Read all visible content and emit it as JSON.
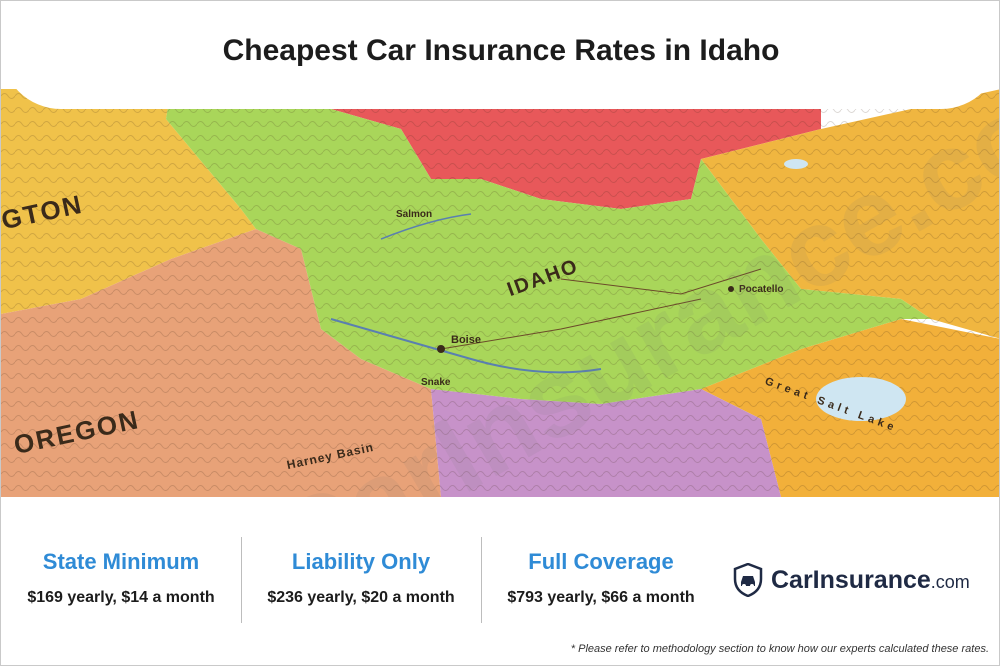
{
  "title": "Cheapest Car Insurance Rates in Idaho",
  "map": {
    "labels": {
      "idaho": "IDAHO",
      "oregon": "OREGON",
      "washington": "GTON",
      "harney_basin": "Harney Basin",
      "great_salt_lake": "Great Salt Lake",
      "boise": "Boise",
      "salmon": "Salmon",
      "snake": "Snake",
      "pocatello": "Pocatello"
    },
    "colors": {
      "idaho": "#a9d65a",
      "oregon": "#e8a278",
      "washington": "#f0c24a",
      "montana": "#e8585a",
      "wyoming": "#f0b640",
      "utah": "#f2b03a",
      "nevada": "#c792c9"
    }
  },
  "stats": [
    {
      "label": "State Minimum",
      "value": "$169 yearly, $14 a month"
    },
    {
      "label": "Liability Only",
      "value": "$236 yearly, $20 a month"
    },
    {
      "label": "Full Coverage",
      "value": "$793 yearly, $66 a month"
    }
  ],
  "logo": {
    "name": "CarInsurance",
    "suffix": ".com",
    "icon": "shield-car-icon"
  },
  "footnote": "* Please refer to methodology section to know how our experts calculated these rates.",
  "watermark": "CarInsurance.com",
  "colors": {
    "accent": "#2f8bd6",
    "brand": "#1f2a44"
  }
}
